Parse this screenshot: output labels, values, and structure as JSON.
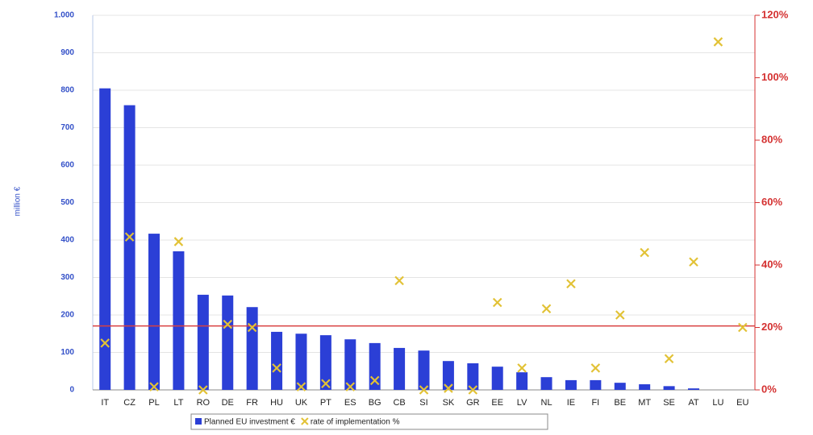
{
  "chart_data": {
    "type": "combo",
    "y_label": "million €",
    "categories": [
      "IT",
      "CZ",
      "PL",
      "LT",
      "RO",
      "DE",
      "FR",
      "HU",
      "UK",
      "PT",
      "ES",
      "BG",
      "CB",
      "SI",
      "SK",
      "GR",
      "EE",
      "LV",
      "NL",
      "IE",
      "FI",
      "BE",
      "MT",
      "SE",
      "AT",
      "LU",
      "EU"
    ],
    "series": [
      {
        "name": "Planned EU investment €",
        "type": "bar",
        "color": "#2b3fd6",
        "values": [
          805,
          760,
          417,
          370,
          254,
          252,
          221,
          155,
          150,
          146,
          135,
          125,
          112,
          105,
          77,
          71,
          62,
          47,
          34,
          26,
          26,
          19,
          15,
          10,
          4,
          0,
          null
        ]
      },
      {
        "name": "rate of implementation %",
        "type": "marker",
        "axis": "y2",
        "color": "#e2c236",
        "values": [
          15,
          49,
          1,
          47.5,
          0,
          21,
          20,
          7,
          1,
          2,
          1,
          3,
          35,
          0,
          0.5,
          0,
          28,
          7,
          26,
          34,
          7,
          24,
          44,
          10,
          41,
          111.5,
          20
        ]
      }
    ],
    "y2_reference": 20.5,
    "y2_reference_color": "#d94040",
    "ylim": [
      0,
      1000
    ],
    "yticks": [
      0,
      100,
      200,
      300,
      400,
      500,
      600,
      700,
      800,
      900,
      {
        "value": 1000,
        "label": "1.000"
      }
    ],
    "y2lim": [
      0,
      120
    ],
    "y2ticks": [
      {
        "value": 0,
        "label": "0%"
      },
      {
        "value": 20,
        "label": "20%"
      },
      {
        "value": 40,
        "label": "40%"
      },
      {
        "value": 60,
        "label": "60%"
      },
      {
        "value": 80,
        "label": "80%"
      },
      {
        "value": 100,
        "label": "100%"
      },
      {
        "value": 120,
        "label": "120%"
      }
    ],
    "grid": true
  }
}
